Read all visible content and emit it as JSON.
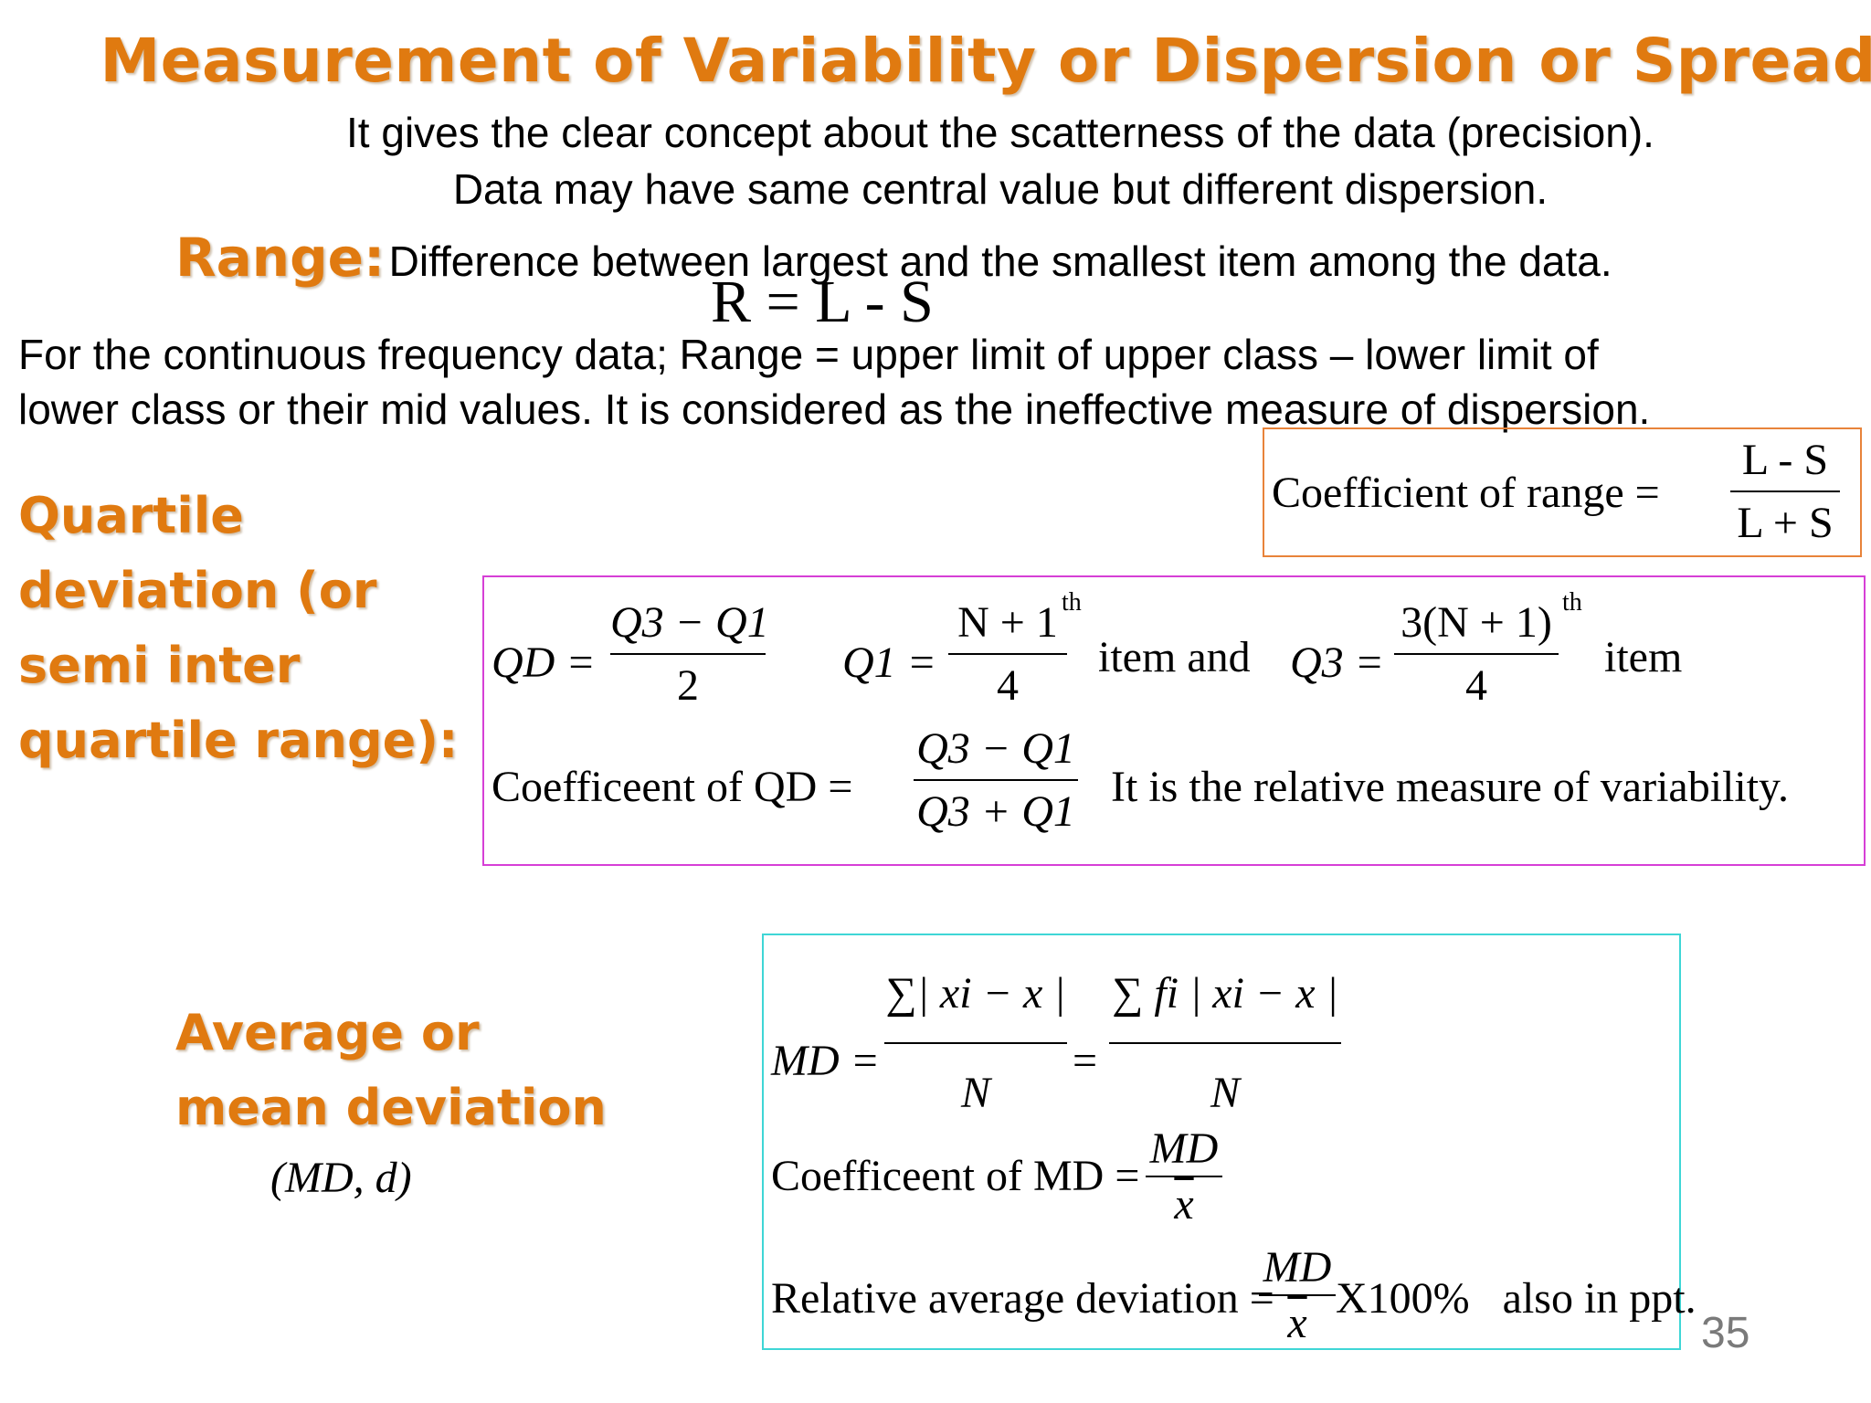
{
  "title": "Measurement of Variability or Dispersion or Spread:",
  "intro": {
    "line1": "It gives the clear concept about the scatterness of the data (precision).",
    "line2": "Data may have same central value but different dispersion."
  },
  "range": {
    "label": "Range:",
    "definition": "Difference between largest and the smallest item among the data.",
    "formula": "R = L - S",
    "continuous_line1": "For the continuous frequency data; Range = upper limit of upper class – lower limit of",
    "continuous_line2": "lower class or their mid values. It is considered as the ineffective measure of dispersion.",
    "coef_label": "Coefficient of range =",
    "coef_num": "L - S",
    "coef_den": "L + S"
  },
  "qd": {
    "heading_lines": [
      "Quartile",
      "deviation (or",
      "semi inter",
      "quartile range):"
    ],
    "qd_lhs": "QD =",
    "qd_num": "Q3 − Q1",
    "qd_den": "2",
    "q1_lhs": "Q1 =",
    "q1_num": "N + 1",
    "q1_sup": "th",
    "q1_den": "4",
    "item_and": "item and",
    "q3_lhs": "Q3 =",
    "q3_num": "3(N + 1)",
    "q3_sup": "th",
    "q3_den": "4",
    "item": "item",
    "coef_label": "Coefficeent of QD =",
    "coef_num": "Q3 − Q1",
    "coef_den": "Q3 + Q1",
    "relative_note": "It is the relative measure of variability."
  },
  "md": {
    "heading_lines": [
      "Average or",
      "mean deviation"
    ],
    "symbol": "(MD, d)",
    "md_lhs": "MD =",
    "md_num1": "∑| xi − x |",
    "md_den1": "N",
    "equals": "=",
    "md_num2": "∑ fi | xi − x |",
    "md_den2": "N",
    "coef_label": "Coefficeent of MD =",
    "coef_num": "MD",
    "coef_den": "x",
    "rel_label": "Relative average deviation =",
    "rel_num": "MD",
    "rel_den": "x",
    "rel_tail": "X100%   also in ppt."
  },
  "slide_number": "35",
  "colors": {
    "heading_orange": "#e07a10",
    "range_box_border": "#e8833a",
    "qd_box_border": "#d63fd6",
    "md_box_border": "#3fd6d6",
    "slide_number": "#7a7a7a"
  }
}
